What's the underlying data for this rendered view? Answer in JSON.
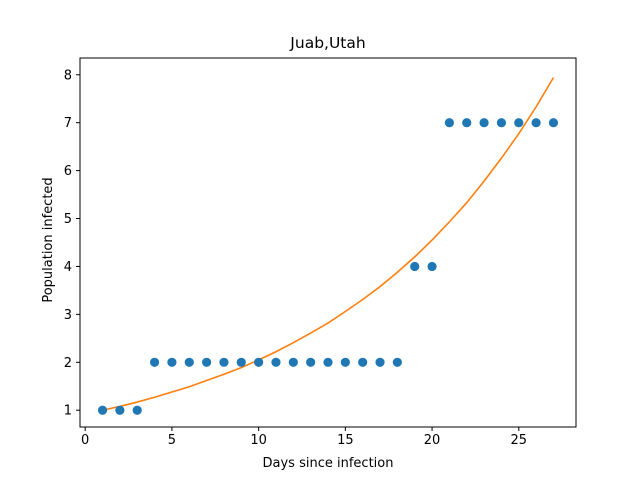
{
  "chart_data": {
    "type": "scatter",
    "title": "Juab,Utah",
    "xlabel": "Days since infection",
    "ylabel": "Population infected",
    "xlim": [
      -0.3,
      28.3
    ],
    "ylim": [
      0.65,
      8.35
    ],
    "xticks": [
      0,
      5,
      10,
      15,
      20,
      25
    ],
    "yticks": [
      1,
      2,
      3,
      4,
      5,
      6,
      7,
      8
    ],
    "grid": false,
    "legend": "none",
    "series": [
      {
        "kind": "scatter",
        "color": "#1f77b4",
        "x": [
          1,
          2,
          3,
          4,
          5,
          6,
          7,
          8,
          9,
          10,
          11,
          12,
          13,
          14,
          15,
          16,
          17,
          18,
          19,
          20,
          21,
          22,
          23,
          24,
          25,
          26,
          27
        ],
        "y": [
          1,
          1,
          1,
          2,
          2,
          2,
          2,
          2,
          2,
          2,
          2,
          2,
          2,
          2,
          2,
          2,
          2,
          2,
          4,
          4,
          7,
          7,
          7,
          7,
          7,
          7,
          7
        ]
      },
      {
        "kind": "line",
        "color": "#ff7f0e",
        "x": [
          1,
          2,
          3,
          4,
          5,
          6,
          7,
          8,
          9,
          10,
          11,
          12,
          13,
          14,
          15,
          16,
          17,
          18,
          19,
          20,
          21,
          22,
          23,
          24,
          25,
          26,
          27
        ],
        "y": [
          1.0,
          1.08,
          1.17,
          1.27,
          1.38,
          1.49,
          1.62,
          1.75,
          1.89,
          2.05,
          2.22,
          2.41,
          2.61,
          2.82,
          3.06,
          3.31,
          3.58,
          3.88,
          4.2,
          4.55,
          4.93,
          5.33,
          5.78,
          6.26,
          6.77,
          7.33,
          7.94
        ]
      }
    ]
  }
}
